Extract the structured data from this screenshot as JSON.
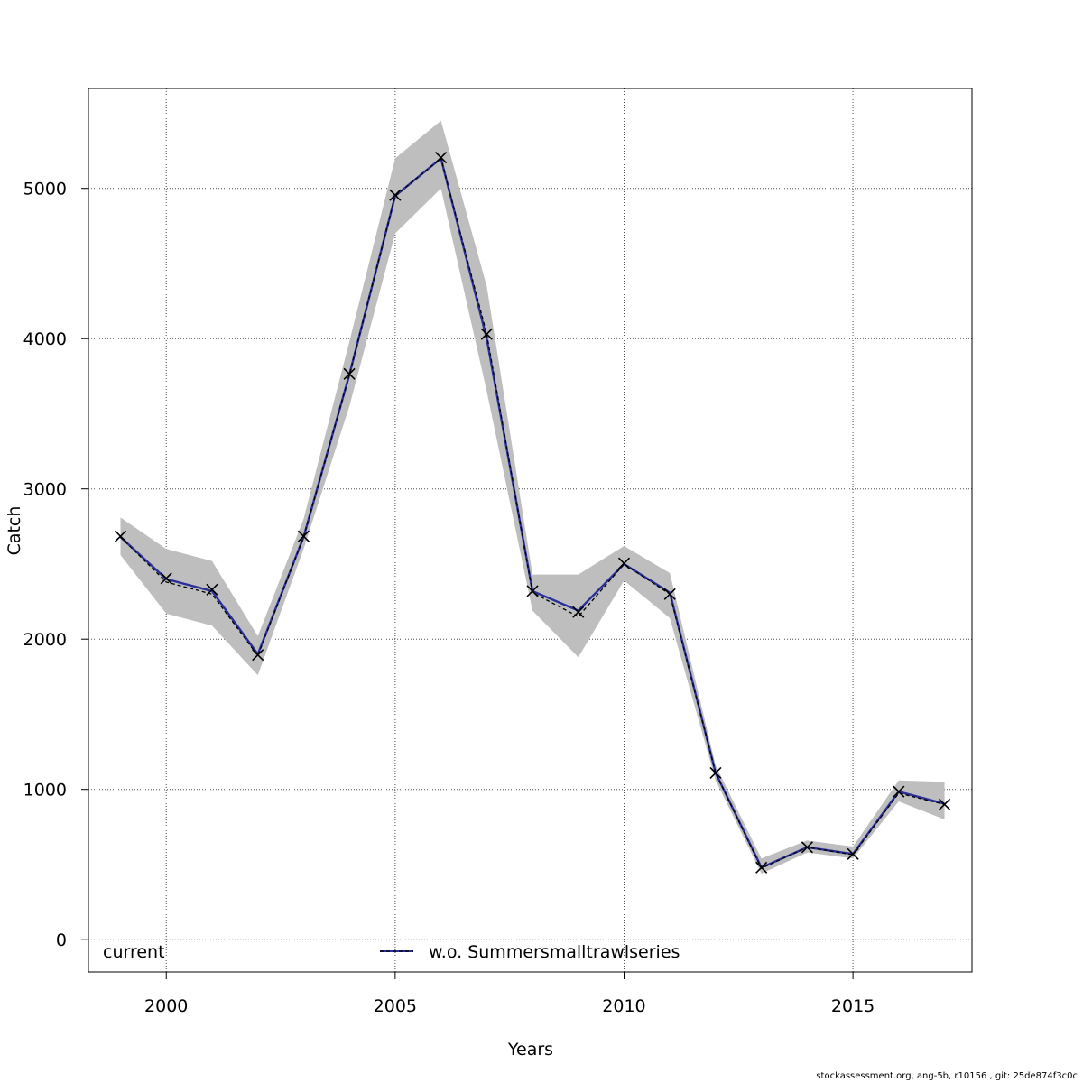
{
  "chart_data": {
    "type": "line",
    "title": "",
    "xlabel": "Years",
    "ylabel": "Catch",
    "xlim": [
      1998.3,
      2017.6
    ],
    "ylim": [
      -215,
      5665
    ],
    "xticks": [
      2000,
      2005,
      2010,
      2015
    ],
    "yticks": [
      0,
      1000,
      2000,
      3000,
      4000,
      5000
    ],
    "grid": true,
    "legend_position": "bottom",
    "x": [
      1999,
      2000,
      2001,
      2002,
      2003,
      2004,
      2005,
      2006,
      2007,
      2008,
      2009,
      2010,
      2011,
      2012,
      2013,
      2014,
      2015,
      2016,
      2017
    ],
    "series": [
      {
        "name": "current",
        "style": "dashed",
        "color": "#000000",
        "values": [
          2680,
          2380,
          2300,
          1890,
          2680,
          3760,
          4950,
          5200,
          4030,
          2310,
          2150,
          2500,
          2300,
          1110,
          475,
          615,
          565,
          975,
          900
        ],
        "lower": [
          2560,
          2170,
          2090,
          1760,
          2600,
          3550,
          4700,
          5000,
          3650,
          2190,
          1880,
          2390,
          2140,
          1060,
          440,
          580,
          540,
          920,
          800
        ],
        "upper": [
          2810,
          2600,
          2520,
          2020,
          2800,
          3980,
          5200,
          5450,
          4350,
          2430,
          2430,
          2620,
          2440,
          1160,
          540,
          660,
          620,
          1060,
          1050
        ]
      },
      {
        "name": "w.o. Summersmalltrawlseries",
        "style": "solid",
        "color": "#2a2f9a",
        "values": [
          2680,
          2400,
          2320,
          1900,
          2680,
          3760,
          4950,
          5200,
          4000,
          2320,
          2190,
          2500,
          2310,
          1110,
          480,
          615,
          570,
          985,
          905
        ]
      }
    ],
    "observations": {
      "marker": "x",
      "values": [
        2685,
        2405,
        2330,
        1895,
        2685,
        3765,
        4955,
        5205,
        4030,
        2320,
        2180,
        2505,
        2300,
        1110,
        480,
        615,
        570,
        985,
        900
      ]
    }
  },
  "colors": {
    "band": "#bebebe",
    "grid": "#4d4d4d"
  },
  "footer": "stockassessment.org, ang-5b, r10156 , git: 25de874f3c0c"
}
